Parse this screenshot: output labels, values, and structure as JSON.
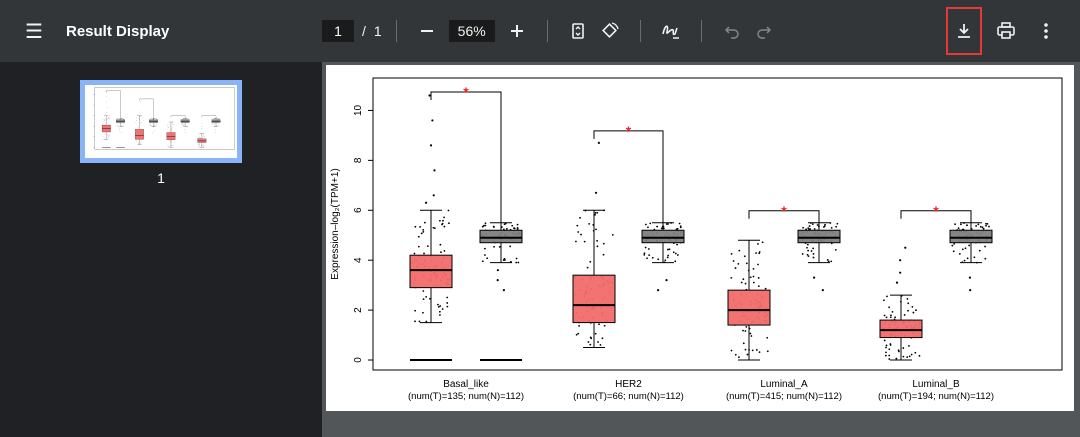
{
  "toolbar": {
    "title": "Result Display",
    "page_current": "1",
    "page_sep": "/",
    "page_total": "1",
    "zoom": "56%"
  },
  "sidebar": {
    "thumbnail_label": "1"
  },
  "chart_data": {
    "type": "box",
    "ylabel": "Expression–log₂(TPM+1)",
    "ylim": [
      -0.4,
      11.3
    ],
    "yticks": [
      0,
      2,
      4,
      6,
      8,
      10
    ],
    "significance_marker": "*",
    "groups": [
      {
        "name": "Basal_like",
        "sub": "(num(T)=135; num(N)=112)",
        "tumor": {
          "lw": 1.5,
          "q1": 2.9,
          "med": 3.6,
          "q3": 4.2,
          "uw": 6.0,
          "outliers": [
            6.3,
            6.6,
            7.6,
            8.6,
            9.6,
            10.6
          ]
        },
        "normal": {
          "lw": 3.9,
          "q1": 4.7,
          "med": 4.9,
          "q3": 5.2,
          "uw": 5.5,
          "outliers": [
            2.8,
            3.2,
            3.6
          ]
        },
        "zero_line": true
      },
      {
        "name": "HER2",
        "sub": "(num(T)=66; num(N)=112)",
        "tumor": {
          "lw": 0.5,
          "q1": 1.5,
          "med": 2.2,
          "q3": 3.4,
          "uw": 6.0,
          "outliers": [
            6.7,
            8.7
          ]
        },
        "normal": {
          "lw": 3.9,
          "q1": 4.7,
          "med": 4.9,
          "q3": 5.2,
          "uw": 5.5,
          "outliers": [
            2.8,
            3.2
          ]
        },
        "zero_line": false
      },
      {
        "name": "Luminal_A",
        "sub": "(num(T)=415; num(N)=112)",
        "tumor": {
          "lw": 0.0,
          "q1": 1.4,
          "med": 2.0,
          "q3": 2.8,
          "uw": 4.8,
          "outliers": []
        },
        "normal": {
          "lw": 3.9,
          "q1": 4.7,
          "med": 4.9,
          "q3": 5.2,
          "uw": 5.5,
          "outliers": [
            2.8,
            3.3
          ]
        },
        "zero_line": false
      },
      {
        "name": "Luminal_B",
        "sub": "(num(T)=194; num(N)=112)",
        "tumor": {
          "lw": 0.0,
          "q1": 0.9,
          "med": 1.2,
          "q3": 1.6,
          "uw": 2.6,
          "outliers": [
            3.1,
            3.5,
            4.0,
            4.5
          ]
        },
        "normal": {
          "lw": 3.9,
          "q1": 4.7,
          "med": 4.9,
          "q3": 5.2,
          "uw": 5.5,
          "outliers": [
            2.8,
            3.3
          ]
        },
        "zero_line": false
      }
    ],
    "colors": {
      "tumor": "#f26b6b",
      "normal": "#7f7f7f",
      "star": "#e8262b"
    }
  }
}
